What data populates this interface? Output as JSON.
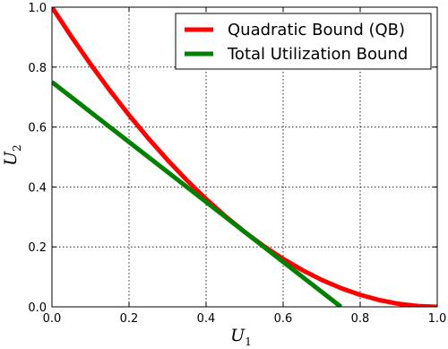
{
  "chart_data": {
    "type": "line",
    "xlim": [
      0.0,
      1.0
    ],
    "ylim": [
      0.0,
      1.0
    ],
    "xlabel": {
      "main": "U",
      "sub": "1"
    },
    "ylabel": {
      "main": "U",
      "sub": "2"
    },
    "x_ticks": [
      0.0,
      0.2,
      0.4,
      0.6,
      0.8,
      1.0
    ],
    "y_ticks": [
      0.0,
      0.2,
      0.4,
      0.6,
      0.8,
      1.0
    ],
    "x_tick_labels": [
      "0.0",
      "0.2",
      "0.4",
      "0.6",
      "0.8",
      "1.0"
    ],
    "y_tick_labels": [
      "0.0",
      "0.2",
      "0.4",
      "0.6",
      "0.8",
      "1.0"
    ],
    "grid": true,
    "legend_position": "top-right",
    "series": [
      {
        "name": "Quadratic Bound (QB)",
        "color": "#ff0000",
        "x": [
          0.0,
          0.05,
          0.1,
          0.15,
          0.2,
          0.25,
          0.3,
          0.35,
          0.4,
          0.45,
          0.5,
          0.55,
          0.6,
          0.65,
          0.7,
          0.75,
          0.8,
          0.85,
          0.9,
          0.95,
          1.0
        ],
        "y": [
          1.0,
          0.9025,
          0.81,
          0.7225,
          0.64,
          0.5625,
          0.49,
          0.4225,
          0.36,
          0.3025,
          0.25,
          0.2025,
          0.16,
          0.1225,
          0.09,
          0.0625,
          0.04,
          0.0225,
          0.01,
          0.0025,
          0.0
        ]
      },
      {
        "name": "Total Utilization Bound",
        "color": "#008000",
        "x": [
          0.0,
          0.75
        ],
        "y": [
          0.75,
          0.0
        ]
      }
    ]
  }
}
